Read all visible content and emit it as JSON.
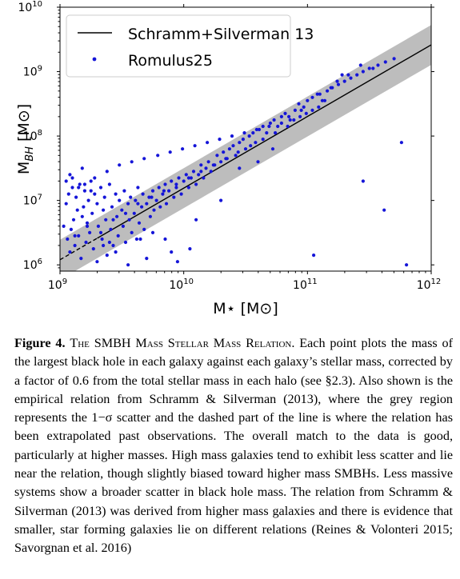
{
  "chart_data": {
    "type": "scatter",
    "x_scale": "log",
    "y_scale": "log",
    "xlim": [
      1000000000,
      1000000000000
    ],
    "ylim": [
      800000,
      10000000000
    ],
    "xlabel": "M⋆ [M⊙]",
    "ylabel": "M_BH [M⊙]",
    "x_ticks": [
      {
        "value": 1000000000,
        "base": "10",
        "exp": "9"
      },
      {
        "value": 10000000000,
        "base": "10",
        "exp": "10"
      },
      {
        "value": 100000000000,
        "base": "10",
        "exp": "11"
      },
      {
        "value": 1000000000000,
        "base": "10",
        "exp": "12"
      }
    ],
    "y_ticks": [
      {
        "value": 1000000,
        "base": "10",
        "exp": "6"
      },
      {
        "value": 10000000,
        "base": "10",
        "exp": "7"
      },
      {
        "value": 100000000,
        "base": "10",
        "exp": "8"
      },
      {
        "value": 1000000000,
        "base": "10",
        "exp": "9"
      },
      {
        "value": 10000000000,
        "base": "10",
        "exp": "10"
      }
    ],
    "grid": false,
    "legend_placement": "top-left",
    "series": [
      {
        "name": "Schramm+Silverman 13",
        "kind": "line",
        "color": "#000000",
        "x": [
          1000000000,
          1000000000000
        ],
        "y": [
          1200000,
          2600000000
        ],
        "dashed_below_x": 2000000000,
        "scatter_band_dex": 0.31,
        "band_color": "#bdbdbd"
      },
      {
        "name": "Romulus25",
        "kind": "scatter",
        "color": "#1515d8",
        "log_x": [
          9.03,
          9.05,
          9.06,
          9.07,
          9.08,
          9.09,
          9.1,
          9.11,
          9.12,
          9.13,
          9.14,
          9.15,
          9.16,
          9.17,
          9.18,
          9.19,
          9.2,
          9.21,
          9.22,
          9.23,
          9.24,
          9.25,
          9.26,
          9.27,
          9.28,
          9.3,
          9.31,
          9.33,
          9.34,
          9.35,
          9.36,
          9.37,
          9.38,
          9.4,
          9.41,
          9.42,
          9.43,
          9.45,
          9.46,
          9.47,
          9.48,
          9.5,
          9.51,
          9.52,
          9.53,
          9.55,
          9.56,
          9.57,
          9.58,
          9.6,
          9.61,
          9.62,
          9.63,
          9.64,
          9.66,
          9.67,
          9.68,
          9.7,
          9.72,
          9.73,
          9.75,
          9.76,
          9.78,
          9.8,
          9.81,
          9.83,
          9.85,
          9.86,
          9.88,
          9.9,
          9.92,
          9.94,
          9.96,
          9.98,
          10.0,
          10.02,
          10.04,
          10.06,
          10.08,
          10.1,
          10.12,
          10.14,
          10.16,
          10.18,
          10.2,
          10.22,
          10.25,
          10.27,
          10.3,
          10.32,
          10.35,
          10.37,
          10.4,
          10.42,
          10.45,
          10.48,
          10.5,
          10.53,
          10.56,
          10.58,
          10.61,
          10.64,
          10.67,
          10.7,
          10.73,
          10.76,
          10.79,
          10.82,
          10.86,
          10.9,
          10.93,
          10.97,
          11.0,
          11.04,
          11.08,
          11.12,
          11.16,
          11.2,
          11.25,
          11.3,
          11.35,
          11.4,
          11.45,
          11.5,
          11.57,
          11.63,
          11.7,
          11.76,
          11.8,
          11.05,
          10.05,
          9.95,
          9.85,
          9.7,
          9.55,
          9.4,
          9.3,
          9.2,
          9.1,
          9.05,
          9.15,
          9.25,
          9.35,
          9.45,
          9.65,
          9.75,
          9.9,
          10.1,
          10.3,
          10.45,
          10.6,
          10.72,
          10.85,
          10.95,
          11.1,
          11.28,
          11.45,
          11.62,
          9.08,
          9.12,
          9.18,
          9.22,
          9.28,
          9.33,
          9.38,
          9.43,
          9.48,
          9.53,
          9.58,
          9.63,
          9.68,
          9.74,
          9.79,
          9.84,
          9.89,
          9.94,
          9.99,
          10.04,
          10.09,
          10.14,
          10.19,
          10.24,
          10.29,
          10.34,
          10.39,
          10.44,
          10.49,
          10.54,
          10.59,
          10.64,
          10.69,
          10.74,
          10.79,
          10.84,
          10.89,
          10.94,
          10.99,
          11.04,
          11.09,
          11.14,
          11.19,
          11.24,
          11.33,
          11.43,
          11.53,
          11.66,
          11.72
        ],
        "log_y": [
          6.6,
          6.95,
          6.4,
          7.1,
          6.2,
          6.55,
          7.2,
          6.7,
          6.3,
          7.05,
          6.85,
          6.45,
          7.25,
          6.1,
          6.75,
          6.9,
          7.15,
          6.35,
          6.65,
          7.0,
          6.5,
          7.3,
          6.8,
          6.25,
          7.1,
          6.95,
          6.6,
          7.2,
          6.4,
          6.85,
          7.05,
          6.7,
          6.15,
          7.25,
          6.55,
          6.9,
          6.3,
          7.1,
          6.75,
          6.45,
          7.0,
          6.85,
          6.6,
          7.15,
          6.35,
          6.95,
          6.7,
          7.05,
          6.5,
          6.8,
          7.0,
          6.4,
          7.2,
          6.65,
          6.9,
          7.1,
          6.55,
          6.95,
          7.05,
          6.75,
          7.15,
          6.85,
          7.0,
          7.2,
          6.9,
          7.1,
          7.25,
          6.95,
          7.15,
          7.3,
          7.05,
          7.2,
          7.35,
          7.1,
          7.3,
          7.4,
          7.2,
          7.35,
          7.45,
          7.25,
          7.4,
          7.55,
          7.35,
          7.5,
          7.6,
          7.45,
          7.55,
          7.7,
          7.6,
          7.75,
          7.65,
          7.8,
          7.85,
          7.7,
          7.9,
          7.95,
          7.8,
          8.0,
          8.05,
          7.9,
          8.1,
          8.15,
          8.05,
          8.2,
          8.25,
          8.15,
          8.3,
          8.35,
          8.25,
          8.4,
          8.5,
          8.45,
          8.55,
          8.6,
          8.65,
          8.55,
          8.7,
          8.75,
          8.8,
          8.85,
          8.9,
          8.95,
          9.0,
          9.05,
          9.1,
          9.15,
          9.2,
          7.9,
          6.0,
          6.15,
          6.25,
          6.05,
          6.4,
          6.1,
          6.0,
          6.35,
          6.05,
          7.25,
          7.35,
          7.3,
          7.2,
          7.15,
          6.3,
          6.2,
          6.4,
          6.5,
          6.2,
          6.7,
          7.0,
          7.5,
          7.6,
          7.8,
          8.3,
          8.4,
          8.65,
          8.95,
          7.3,
          6.85,
          7.4,
          6.45,
          7.5,
          6.6,
          7.35,
          6.5,
          7.45,
          6.7,
          7.55,
          6.8,
          7.6,
          6.95,
          7.65,
          7.05,
          7.7,
          7.15,
          7.75,
          7.25,
          7.8,
          7.35,
          7.85,
          7.45,
          7.9,
          7.55,
          7.95,
          7.65,
          8.0,
          7.75,
          8.05,
          7.85,
          8.1,
          7.95,
          8.15,
          8.05,
          8.2,
          8.15,
          8.25,
          8.3,
          8.35,
          8.4,
          8.45,
          8.55,
          8.75,
          8.85,
          8.95,
          9.1,
          9.05
        ]
      }
    ]
  },
  "caption": {
    "label": "Figure 4.",
    "title": "The SMBH Mass Stellar Mass Relation.",
    "lines": [
      "Each point plots the",
      "mass of the largest black hole in each galaxy against each galaxy’s stellar",
      "mass, corrected by a factor of 0.6 from the total stellar mass in each halo",
      "(see §2.3). Also shown is the empirical relation from Schramm & Silverman",
      "(2013), where the grey region represents the 1−σ scatter and the dashed part",
      "of the line is where the relation has been extrapolated past observations. The",
      "overall match to the data is good, particularly at higher masses. High mass",
      "galaxies tend to exhibit less scatter and lie near the relation, though slightly",
      "biased toward higher mass SMBHs. Less massive systems show a broader",
      "scatter in black hole mass. The relation from Schramm & Silverman (2013)",
      "was derived from higher mass galaxies and there is evidence that smaller,",
      "star forming galaxies lie on different relations (Reines & Volonteri 2015;",
      "Savorgnan et al. 2016)"
    ]
  }
}
